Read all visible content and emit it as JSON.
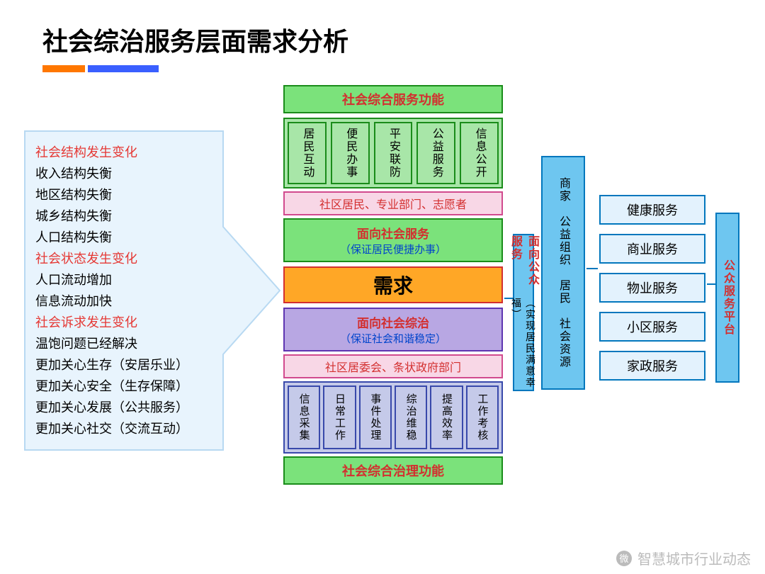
{
  "title": "社会综治服务层面需求分析",
  "arrow": {
    "fill": "#e8f4fd",
    "stroke": "#b8d9f2"
  },
  "list": [
    {
      "text": "社会结构发生变化",
      "red": true
    },
    {
      "text": "收入结构失衡",
      "red": false
    },
    {
      "text": "地区结构失衡",
      "red": false
    },
    {
      "text": "城乡结构失衡",
      "red": false
    },
    {
      "text": "人口结构失衡",
      "red": false
    },
    {
      "text": "社会状态发生变化",
      "red": true
    },
    {
      "text": "人口流动增加",
      "red": false
    },
    {
      "text": "信息流动加快",
      "red": false
    },
    {
      "text": "社会诉求发生变化",
      "red": true
    },
    {
      "text": "温饱问题已经解决",
      "red": false
    },
    {
      "text": "更加关心生存（安居乐业）",
      "red": false
    },
    {
      "text": "更加关心安全（生存保障）",
      "red": false
    },
    {
      "text": "更加关心发展（公共服务）",
      "red": false
    },
    {
      "text": "更加关心社交（交流互动）",
      "red": false
    }
  ],
  "center": {
    "topFn": "社会综合服务功能",
    "greenCells": [
      "居民互动",
      "便民办事",
      "平安联防",
      "公益服务",
      "信息公开"
    ],
    "pink1": "社区居民、专业部门、志愿者",
    "greenSvc": {
      "t1": "面向社会服务",
      "t2": "（保证居民便捷办事）"
    },
    "demand": "需求",
    "purple": {
      "t1": "面向社会综治",
      "t2": "（保证社会和谐稳定）"
    },
    "pink2": "社区居委会、条状政府部门",
    "blueCells": [
      "信息采集",
      "日常工作",
      "事件处理",
      "综治维稳",
      "提高效率",
      "工作考核"
    ],
    "botFn": "社会综合治理功能"
  },
  "right": {
    "publicSvc": {
      "t1": "面向公众服务",
      "t2": "（实现居民满意幸福）"
    },
    "merchant": "商家　公益组织　居民　社会资源",
    "platform": "公众服务平台",
    "services": [
      "健康服务",
      "商业服务",
      "物业服务",
      "小区服务",
      "家政服务"
    ]
  },
  "watermark": "智慧城市行业动态",
  "colors": {
    "green_bg": "#7be27b",
    "green_border": "#1a8c1a",
    "green_light": "#a8e6a8",
    "pink_bg": "#f8d7e6",
    "pink_border": "#d14a8e",
    "orange_bg": "#ffa726",
    "orange_border": "#d32f2f",
    "purple_bg": "#b8a7e3",
    "purple_border": "#5e35b1",
    "blue_light": "#c5cae9",
    "blue_border": "#3949ab",
    "cyan_bg": "#6ec6f0",
    "cyan_border": "#0277bd",
    "cyan_light": "#e3f2fd",
    "red_text": "#d32f2f",
    "blue_text": "#0044cc"
  }
}
